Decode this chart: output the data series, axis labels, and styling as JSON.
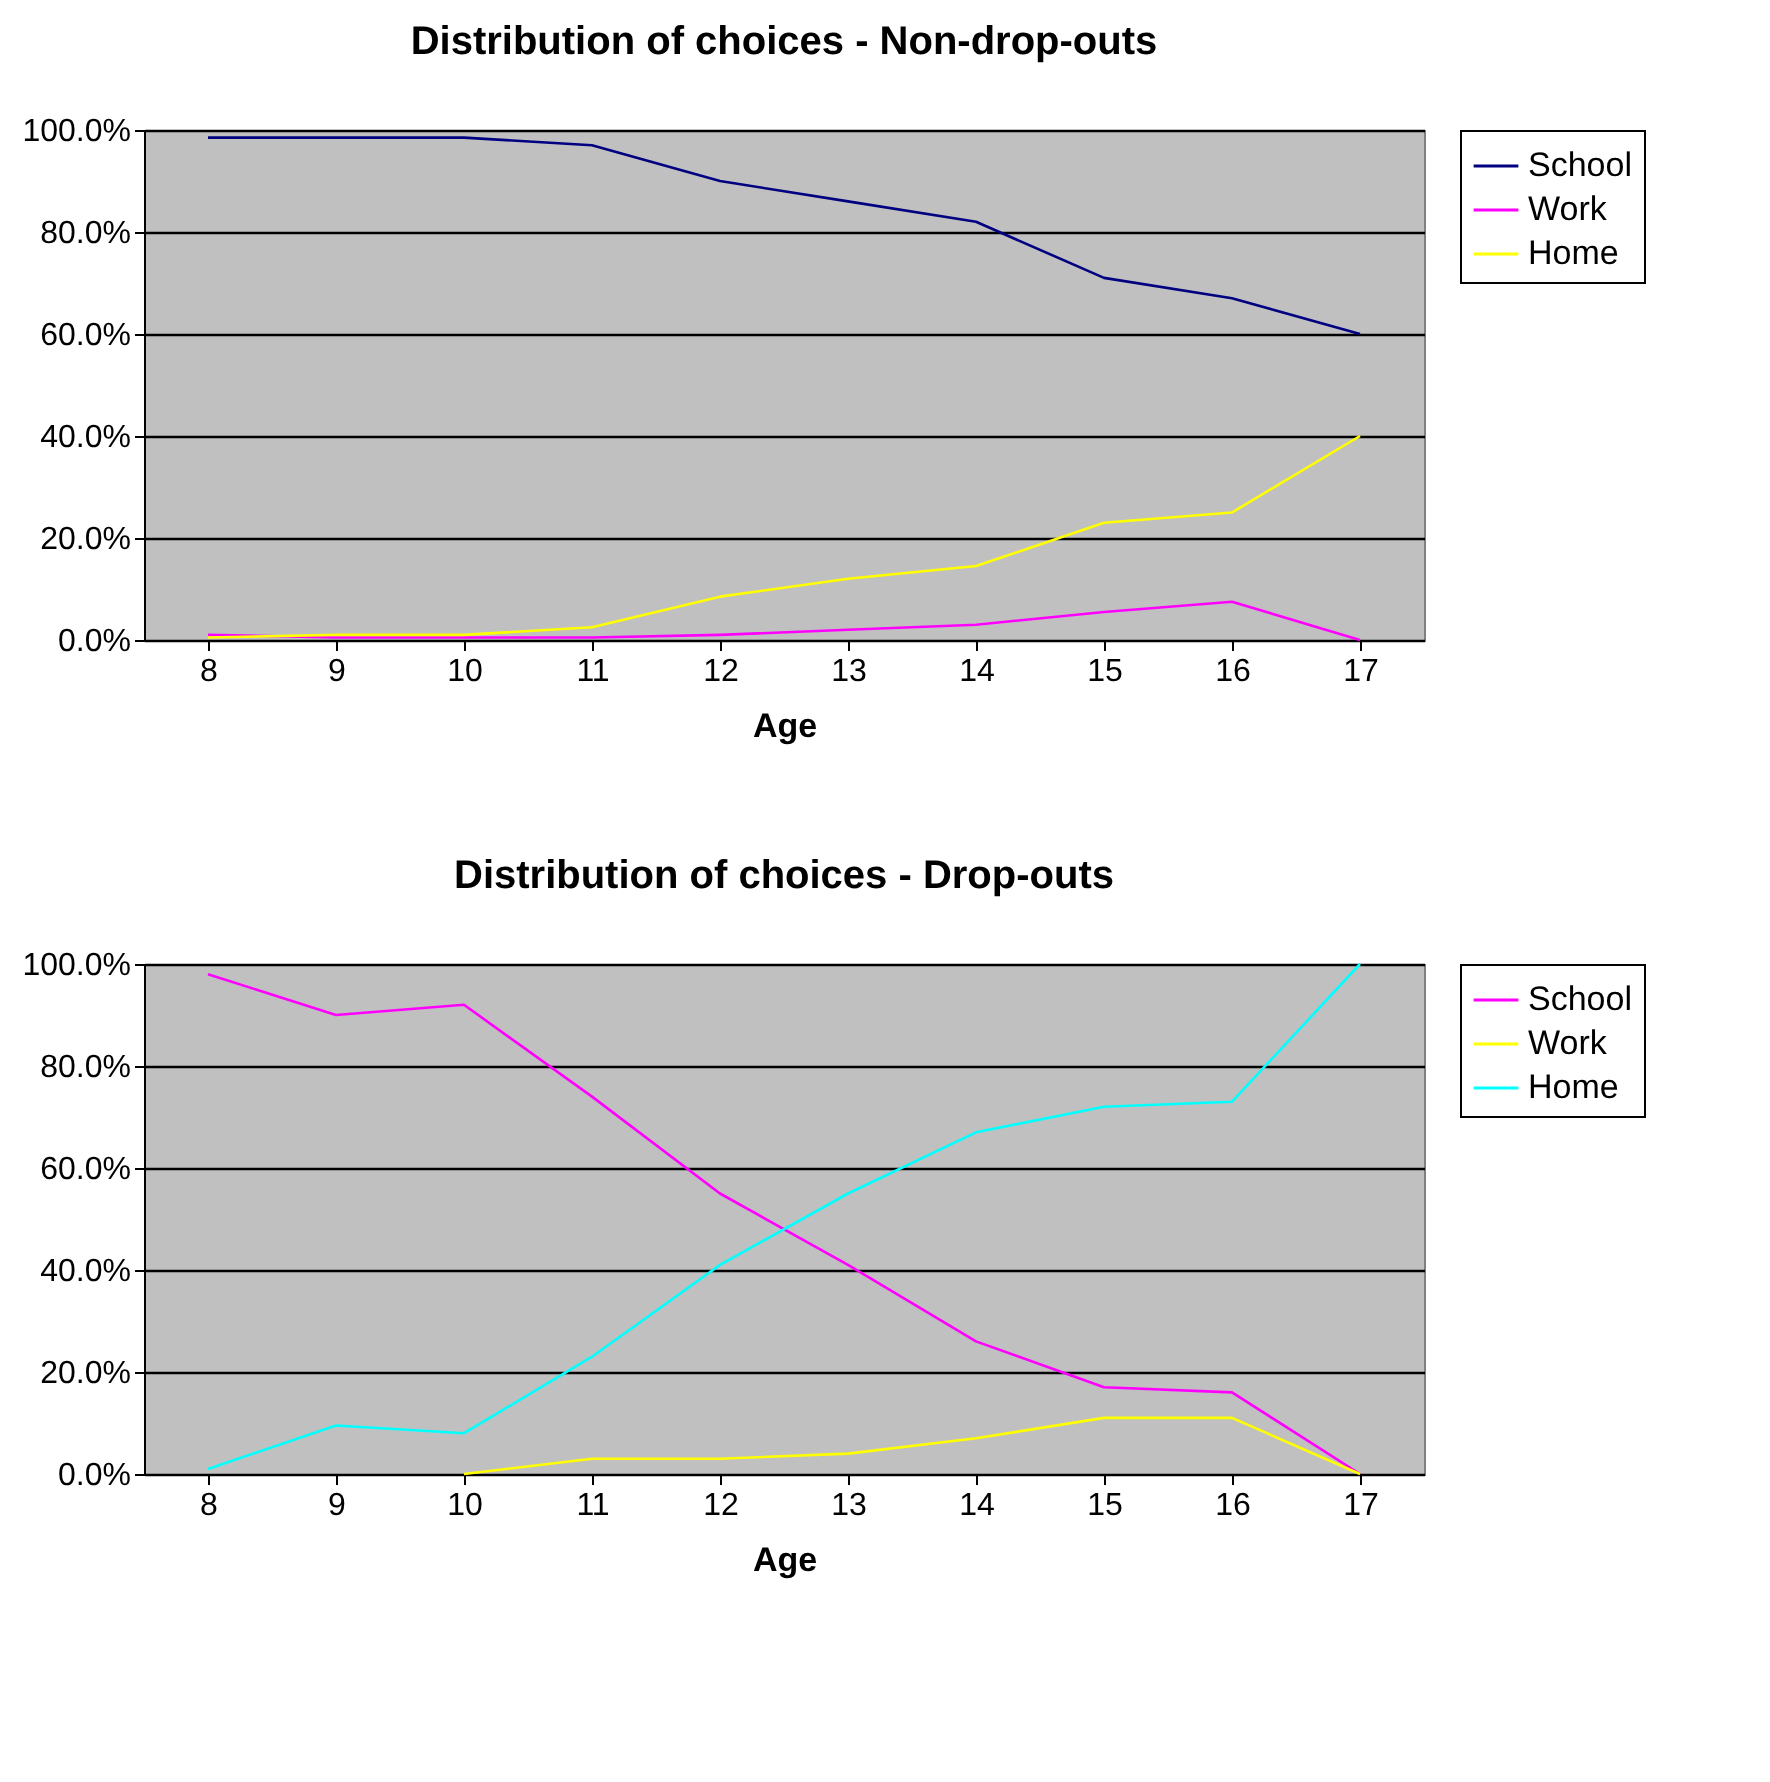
{
  "chart_data": [
    {
      "type": "line",
      "title": "Distribution of choices - Non-drop-outs",
      "xlabel": "Age",
      "categories": [
        "8",
        "9",
        "10",
        "11",
        "12",
        "13",
        "14",
        "15",
        "16",
        "17"
      ],
      "series": [
        {
          "name": "School",
          "color": "#000080",
          "values": [
            98.5,
            98.5,
            98.5,
            97,
            90,
            86,
            82,
            71,
            67,
            60
          ]
        },
        {
          "name": "Work",
          "color": "#ff00ff",
          "values": [
            1,
            0.5,
            0.5,
            0.5,
            1,
            2,
            3,
            5.5,
            7.5,
            0
          ]
        },
        {
          "name": "Home",
          "color": "#ffff00",
          "values": [
            0.5,
            1,
            1,
            2.5,
            8.5,
            12,
            14.5,
            23,
            25,
            40
          ]
        }
      ],
      "ylim": [
        0,
        100
      ],
      "yticks": [
        {
          "value": 0,
          "label": "0.0%"
        },
        {
          "value": 20,
          "label": "20.0%"
        },
        {
          "value": 40,
          "label": "40.0%"
        },
        {
          "value": 60,
          "label": "60.0%"
        },
        {
          "value": 80,
          "label": "80.0%"
        },
        {
          "value": 100,
          "label": "100.0%"
        }
      ],
      "grid": "y",
      "legend": "right",
      "marker": "none"
    },
    {
      "type": "line",
      "title": "Distribution of choices - Drop-outs",
      "xlabel": "Age",
      "categories": [
        "8",
        "9",
        "10",
        "11",
        "12",
        "13",
        "14",
        "15",
        "16",
        "17"
      ],
      "series": [
        {
          "name": "School",
          "color": "#ff00ff",
          "values": [
            98,
            90,
            92,
            74,
            55,
            41,
            26,
            17,
            16,
            0
          ]
        },
        {
          "name": "Work",
          "color": "#ffff00",
          "values": [
            null,
            null,
            0,
            3,
            3,
            4,
            7,
            11,
            11,
            0
          ]
        },
        {
          "name": "Home",
          "color": "#00ffff",
          "values": [
            1,
            9.5,
            8,
            23,
            41,
            55,
            67,
            72,
            73,
            100
          ]
        }
      ],
      "ylim": [
        0,
        100
      ],
      "yticks": [
        {
          "value": 0,
          "label": "0.0%"
        },
        {
          "value": 20,
          "label": "20.0%"
        },
        {
          "value": 40,
          "label": "40.0%"
        },
        {
          "value": 60,
          "label": "60.0%"
        },
        {
          "value": 80,
          "label": "80.0%"
        },
        {
          "value": 100,
          "label": "100.0%"
        }
      ],
      "grid": "y",
      "legend": "right",
      "marker": "none"
    }
  ]
}
